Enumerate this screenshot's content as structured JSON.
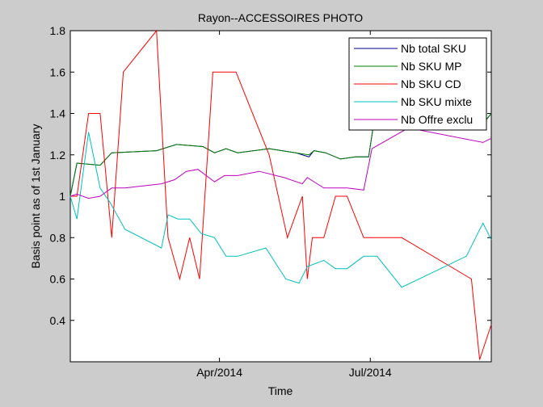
{
  "chart_data": {
    "type": "line",
    "title": "Rayon--ACCESSOIRES PHOTO",
    "xlabel": "Time",
    "ylabel": "Basis point as of 1st January",
    "x_ticks": [
      "Apr/2014",
      "Jul/2014"
    ],
    "y_ticks": [
      "0.4",
      "0.6",
      "0.8",
      "1",
      "1.2",
      "1.4",
      "1.6",
      "1.8"
    ],
    "xlim": [
      "2014-01-01",
      "2014-09-12"
    ],
    "ylim": [
      0.2,
      1.8
    ],
    "grid": false,
    "legend_position": "top-right",
    "series": [
      {
        "name": "Nb total SKU",
        "color": "#00008f",
        "points": [
          [
            "2014-01-01",
            1.0
          ],
          [
            "2014-01-05",
            1.16
          ],
          [
            "2014-01-19",
            1.15
          ],
          [
            "2014-01-26",
            1.21
          ],
          [
            "2014-02-22",
            1.22
          ],
          [
            "2014-03-06",
            1.25
          ],
          [
            "2014-03-22",
            1.24
          ],
          [
            "2014-03-29",
            1.21
          ],
          [
            "2014-04-05",
            1.23
          ],
          [
            "2014-04-12",
            1.21
          ],
          [
            "2014-05-01",
            1.23
          ],
          [
            "2014-05-17",
            1.21
          ],
          [
            "2014-05-25",
            1.19
          ],
          [
            "2014-05-28",
            1.22
          ],
          [
            "2014-06-04",
            1.21
          ],
          [
            "2014-06-13",
            1.18
          ],
          [
            "2014-06-22",
            1.19
          ],
          [
            "2014-06-30",
            1.19
          ],
          [
            "2014-07-04",
            1.4
          ],
          [
            "2014-07-12",
            1.4
          ],
          [
            "2014-09-07",
            1.35
          ],
          [
            "2014-09-12",
            1.4
          ]
        ]
      },
      {
        "name": "Nb SKU MP",
        "color": "#007f00",
        "points": [
          [
            "2014-01-01",
            1.0
          ],
          [
            "2014-01-05",
            1.16
          ],
          [
            "2014-01-19",
            1.15
          ],
          [
            "2014-01-26",
            1.21
          ],
          [
            "2014-02-22",
            1.22
          ],
          [
            "2014-03-06",
            1.25
          ],
          [
            "2014-03-22",
            1.24
          ],
          [
            "2014-03-29",
            1.21
          ],
          [
            "2014-04-05",
            1.23
          ],
          [
            "2014-04-12",
            1.21
          ],
          [
            "2014-05-01",
            1.23
          ],
          [
            "2014-05-17",
            1.21
          ],
          [
            "2014-05-25",
            1.2
          ],
          [
            "2014-05-28",
            1.22
          ],
          [
            "2014-06-04",
            1.21
          ],
          [
            "2014-06-13",
            1.18
          ],
          [
            "2014-06-22",
            1.19
          ],
          [
            "2014-06-30",
            1.19
          ],
          [
            "2014-07-04",
            1.4
          ],
          [
            "2014-07-12",
            1.4
          ],
          [
            "2014-09-07",
            1.35
          ],
          [
            "2014-09-12",
            1.4
          ]
        ]
      },
      {
        "name": "Nb SKU CD",
        "color": "#ff0000",
        "points": [
          [
            "2014-01-01",
            1.0
          ],
          [
            "2014-01-05",
            1.0
          ],
          [
            "2014-01-12",
            1.4
          ],
          [
            "2014-01-19",
            1.4
          ],
          [
            "2014-01-26",
            0.8
          ],
          [
            "2014-02-02",
            1.6
          ],
          [
            "2014-02-22",
            1.8
          ],
          [
            "2014-03-01",
            0.8
          ],
          [
            "2014-03-08",
            0.6
          ],
          [
            "2014-03-14",
            0.8
          ],
          [
            "2014-03-20",
            0.6
          ],
          [
            "2014-03-28",
            1.6
          ],
          [
            "2014-04-11",
            1.6
          ],
          [
            "2014-05-01",
            1.2
          ],
          [
            "2014-05-12",
            0.8
          ],
          [
            "2014-05-21",
            1.0
          ],
          [
            "2014-05-24",
            0.6
          ],
          [
            "2014-05-27",
            0.8
          ],
          [
            "2014-06-03",
            0.8
          ],
          [
            "2014-06-10",
            1.0
          ],
          [
            "2014-06-17",
            1.0
          ],
          [
            "2014-06-27",
            0.8
          ],
          [
            "2014-07-20",
            0.8
          ],
          [
            "2014-08-31",
            0.6
          ],
          [
            "2014-09-05",
            0.21
          ],
          [
            "2014-09-12",
            0.38
          ]
        ]
      },
      {
        "name": "Nb SKU mixte",
        "color": "#00bfbf",
        "points": [
          [
            "2014-01-01",
            1.0
          ],
          [
            "2014-01-05",
            0.89
          ],
          [
            "2014-01-12",
            1.31
          ],
          [
            "2014-01-19",
            1.04
          ],
          [
            "2014-01-25",
            0.97
          ],
          [
            "2014-02-03",
            0.84
          ],
          [
            "2014-02-25",
            0.75
          ],
          [
            "2014-03-01",
            0.91
          ],
          [
            "2014-03-07",
            0.89
          ],
          [
            "2014-03-14",
            0.89
          ],
          [
            "2014-03-21",
            0.82
          ],
          [
            "2014-03-29",
            0.8
          ],
          [
            "2014-04-05",
            0.71
          ],
          [
            "2014-04-12",
            0.71
          ],
          [
            "2014-04-29",
            0.75
          ],
          [
            "2014-05-11",
            0.6
          ],
          [
            "2014-05-19",
            0.58
          ],
          [
            "2014-05-24",
            0.66
          ],
          [
            "2014-06-03",
            0.69
          ],
          [
            "2014-06-10",
            0.65
          ],
          [
            "2014-06-17",
            0.65
          ],
          [
            "2014-06-27",
            0.71
          ],
          [
            "2014-07-05",
            0.71
          ],
          [
            "2014-07-20",
            0.56
          ],
          [
            "2014-08-28",
            0.71
          ],
          [
            "2014-09-07",
            0.87
          ],
          [
            "2014-09-12",
            0.79
          ]
        ]
      },
      {
        "name": "Nb Offre exclu",
        "color": "#bf00bf",
        "points": [
          [
            "2014-01-01",
            1.0
          ],
          [
            "2014-01-05",
            1.01
          ],
          [
            "2014-01-12",
            0.99
          ],
          [
            "2014-01-19",
            1.0
          ],
          [
            "2014-01-26",
            1.04
          ],
          [
            "2014-02-03",
            1.04
          ],
          [
            "2014-02-25",
            1.06
          ],
          [
            "2014-03-05",
            1.08
          ],
          [
            "2014-03-12",
            1.12
          ],
          [
            "2014-03-19",
            1.13
          ],
          [
            "2014-03-29",
            1.07
          ],
          [
            "2014-04-04",
            1.1
          ],
          [
            "2014-04-12",
            1.1
          ],
          [
            "2014-04-25",
            1.12
          ],
          [
            "2014-05-10",
            1.09
          ],
          [
            "2014-05-21",
            1.06
          ],
          [
            "2014-05-24",
            1.09
          ],
          [
            "2014-06-03",
            1.04
          ],
          [
            "2014-06-10",
            1.04
          ],
          [
            "2014-06-17",
            1.04
          ],
          [
            "2014-06-27",
            1.03
          ],
          [
            "2014-07-02",
            1.23
          ],
          [
            "2014-07-24",
            1.33
          ],
          [
            "2014-09-07",
            1.26
          ],
          [
            "2014-09-12",
            1.28
          ]
        ]
      }
    ]
  }
}
